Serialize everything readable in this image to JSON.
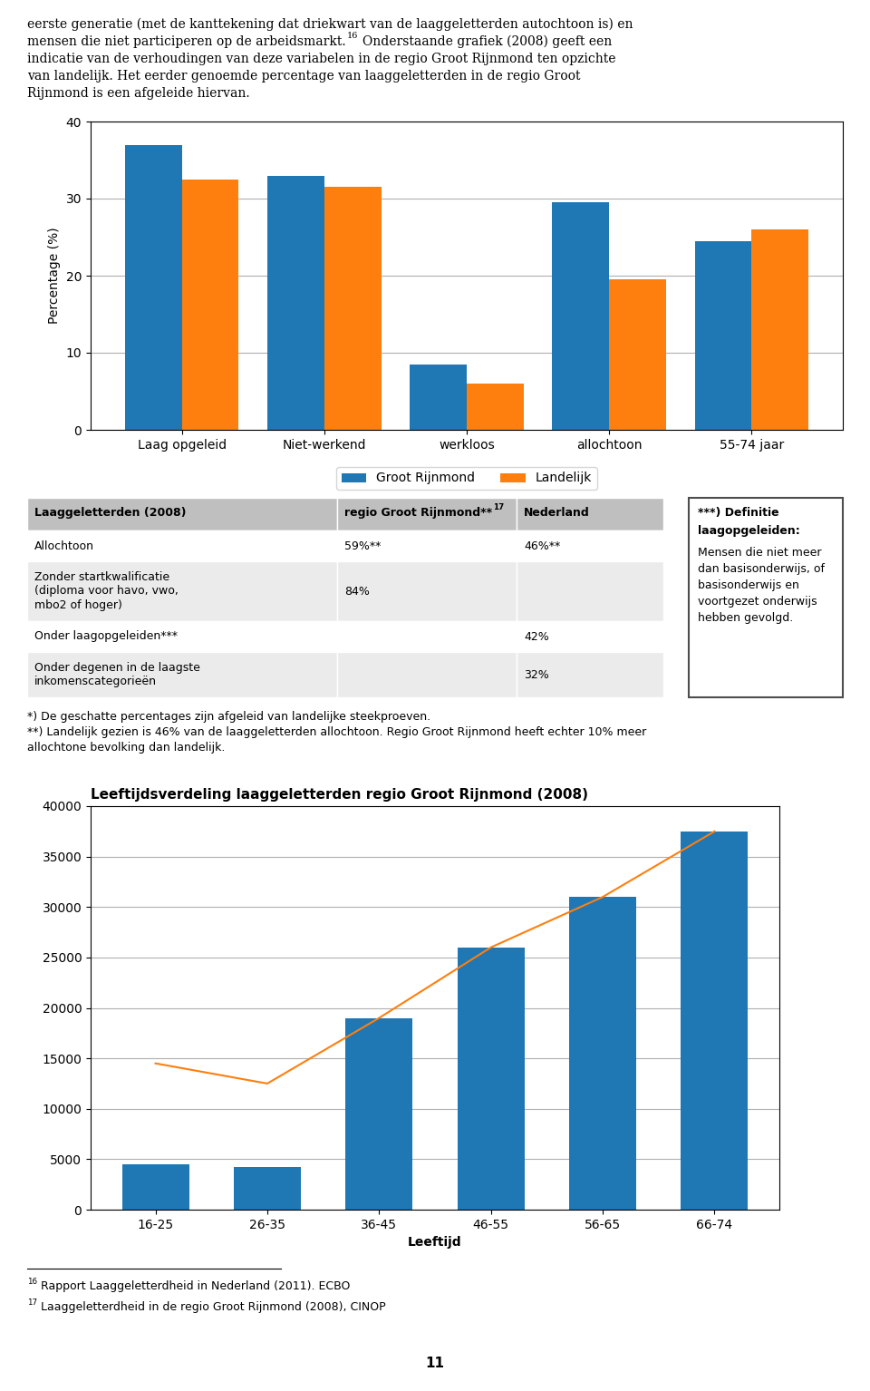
{
  "chart_data": [
    {
      "type": "bar",
      "categories": [
        "Laag opgeleid",
        "Niet-werkend",
        "werkloos",
        "allochtoon",
        "55-74 jaar"
      ],
      "series": [
        {
          "name": "Groot Rijnmond",
          "values": [
            37,
            33,
            8.5,
            29.5,
            24.5
          ]
        },
        {
          "name": "Landelijk",
          "values": [
            32.5,
            31.5,
            6.0,
            19.5,
            26.0
          ]
        }
      ],
      "ylabel": "Percentage (%)",
      "ylim": [
        0,
        40
      ],
      "yticks": [
        0,
        10,
        20,
        30,
        40
      ],
      "grid": true,
      "legend": "upper center",
      "annotations": {
        "intro": [
          [
            "eerste generatie (met de kanttekening dat driekwart van de laaggeletterden autochtoon is) en"
          ],
          [
            "mensen die niet participeren op de arbeidsmarkt.",
            {
              "sup": "16"
            },
            "Onderstaande grafiek (2008) geeft een"
          ],
          [
            "indicatie van de verhoudingen van deze variabelen in de regio Groot Rijnmond ten opzichte"
          ],
          [
            "van landelijk. Het eerder genoemde percentage van laaggeletterden in de regio Groot"
          ],
          [
            "Rijnmond is een afgeleide hiervan."
          ]
        ],
        "table": {
          "header": [
            [
              "Laaggeletterden (2008)"
            ],
            [
              "regio Groot Rijnmond**",
              {
                "sup": "17"
              }
            ],
            [
              "Nederland"
            ]
          ],
          "rows": [
            [
              "Allochtoon",
              "59%**",
              "46%**"
            ],
            [
              "Zonder startkwalificatie\n(diploma voor havo, vwo,\nmbo2 of hoger)",
              "84%",
              null
            ],
            [
              "Onder laagopgeleiden***",
              null,
              "42%"
            ],
            [
              "Onder degenen in de laagste\ninkomenscategorieën",
              null,
              "32%"
            ]
          ]
        },
        "definition": {
          "title": "***) Definitie",
          "term": "laagopgeleiden:",
          "body": "Mensen die niet meer\ndan basisonderwijs, of\nbasisonderwijs en\nvoortgezet onderwijs\nhebben gevolgd."
        },
        "footnotes": [
          "*) De geschatte percentages zijn afgeleid van landelijke steekproeven.",
          "**) Landelijk gezien is 46% van de laaggeletterden allochtoon. Regio Groot Rijnmond heeft echter 10% meer",
          "allochtone bevolking dan landelijk."
        ]
      }
    },
    {
      "type": "bar",
      "title": "Leeftijdsverdeling laaggeletterden regio Groot Rijnmond (2008)",
      "categories": [
        "16-25",
        "26-35",
        "36-45",
        "46-55",
        "56-65",
        "66-74"
      ],
      "series": [
        {
          "values": [
            4500,
            4200,
            19000,
            26000,
            31000,
            37500
          ]
        },
        {
          "type": "line",
          "values": [
            14500,
            12500,
            19000,
            26000,
            31000,
            37500
          ]
        }
      ],
      "xlabel": "Leeftijd",
      "ylim": [
        0,
        40000
      ],
      "yticks": [
        0,
        5000,
        10000,
        15000,
        20000,
        25000,
        30000,
        35000,
        40000
      ],
      "grid": true,
      "annotations": {
        "footnotes": [
          [
            {
              "sup": "16"
            },
            "Rapport Laaggeletterdheid in Nederland (2011). ECBO"
          ],
          [
            {
              "sup": "17"
            },
            "Laaggeletterdheid in de regio Groot Rijnmond (2008), CINOP"
          ]
        ],
        "page_number": "11"
      }
    }
  ]
}
